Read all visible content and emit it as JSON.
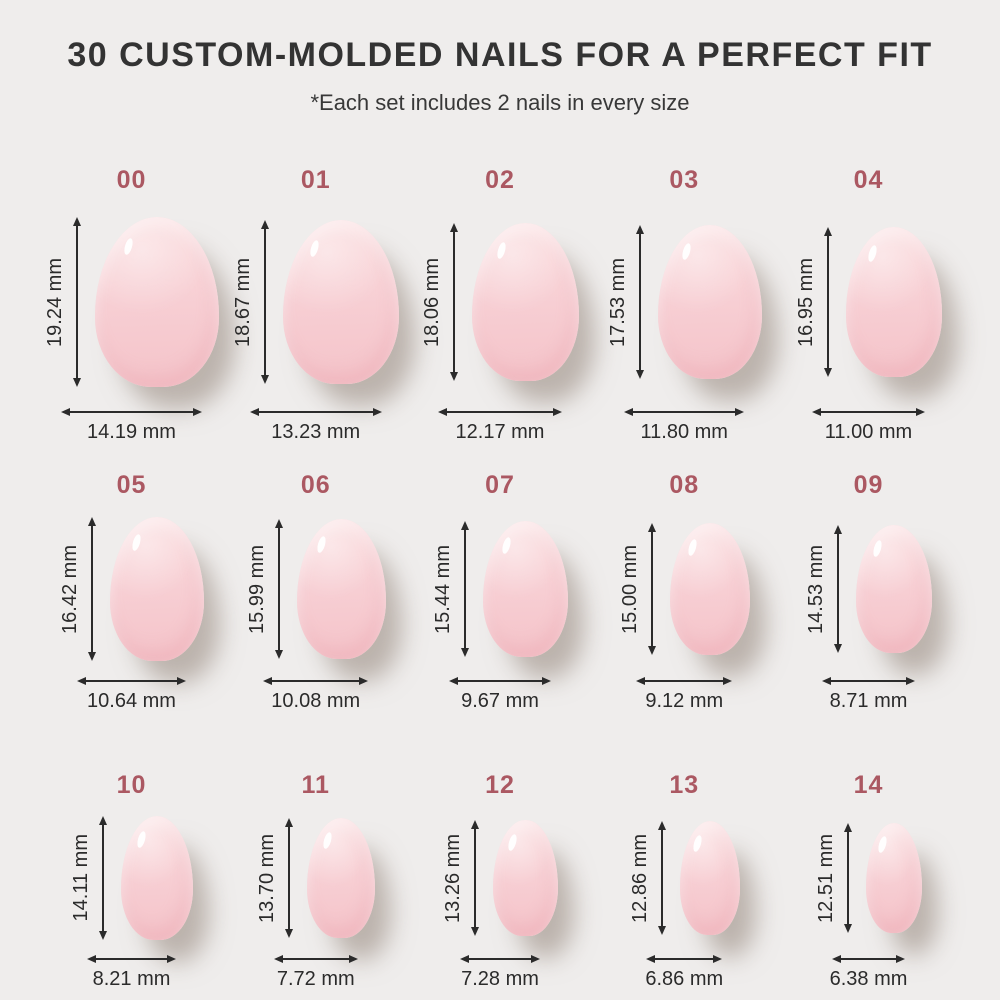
{
  "header": {
    "title": "30 CUSTOM-MOLDED NAILS FOR A PERFECT FIT",
    "subtitle": "*Each set includes 2 nails in every size"
  },
  "unit": "mm",
  "sizes": [
    {
      "label": "00",
      "height": "19.24 mm",
      "width": "14.19 mm"
    },
    {
      "label": "01",
      "height": "18.67 mm",
      "width": "13.23 mm"
    },
    {
      "label": "02",
      "height": "18.06 mm",
      "width": "12.17 mm"
    },
    {
      "label": "03",
      "height": "17.53 mm",
      "width": "11.80 mm"
    },
    {
      "label": "04",
      "height": "16.95 mm",
      "width": "11.00 mm"
    },
    {
      "label": "05",
      "height": "16.42 mm",
      "width": "10.64 mm"
    },
    {
      "label": "06",
      "height": "15.99 mm",
      "width": "10.08 mm"
    },
    {
      "label": "07",
      "height": "15.44 mm",
      "width": "9.67 mm"
    },
    {
      "label": "08",
      "height": "15.00 mm",
      "width": "9.12 mm"
    },
    {
      "label": "09",
      "height": "14.53 mm",
      "width": "8.71 mm"
    },
    {
      "label": "10",
      "height": "14.11 mm",
      "width": "8.21 mm"
    },
    {
      "label": "11",
      "height": "13.70 mm",
      "width": "7.72 mm"
    },
    {
      "label": "12",
      "height": "13.26 mm",
      "width": "7.28 mm"
    },
    {
      "label": "13",
      "height": "12.86 mm",
      "width": "6.86 mm"
    },
    {
      "label": "14",
      "height": "12.51 mm",
      "width": "6.38 mm"
    }
  ],
  "colors": {
    "background": "#efedec",
    "accent_rose": "#ab5862",
    "nail_pink": "#f6c9ce",
    "nail_shadow": "#b5aba3",
    "text_dark": "#2e2e2e"
  }
}
